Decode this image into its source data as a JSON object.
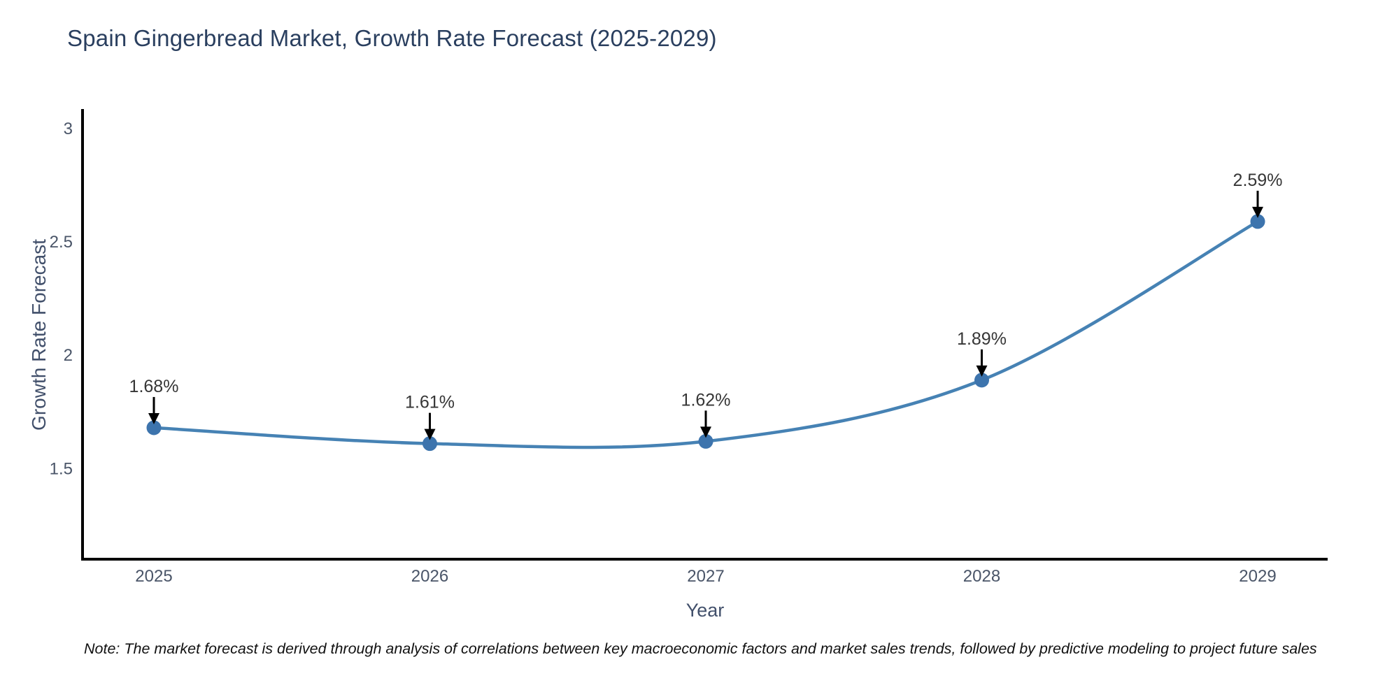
{
  "page": {
    "background": "#ffffff"
  },
  "chart_data": {
    "type": "line",
    "title": "Spain Gingerbread Market, Growth Rate Forecast (2025-2029)",
    "xlabel": "Year",
    "ylabel": "Growth Rate Forecast",
    "categories": [
      "2025",
      "2026",
      "2027",
      "2028",
      "2029"
    ],
    "values": [
      1.68,
      1.61,
      1.62,
      1.89,
      2.59
    ],
    "point_labels": [
      "1.68%",
      "1.61%",
      "1.62%",
      "1.89%",
      "2.59%"
    ],
    "ylim": [
      1.1,
      3.08
    ],
    "yticks": [
      1.5,
      2,
      2.5,
      3
    ],
    "ytick_labels": [
      "1.5",
      "2",
      "2.5",
      "3"
    ],
    "grid": false,
    "legend": "none",
    "line_color": "#4682b4",
    "marker_color": "#3d74ad",
    "axis_color": "#000000",
    "annotation_color": "#000000"
  },
  "note": {
    "text": "Note: The market forecast is derived through analysis of correlations between key macroeconomic factors and market sales trends, followed by predictive modeling to project future sales"
  }
}
